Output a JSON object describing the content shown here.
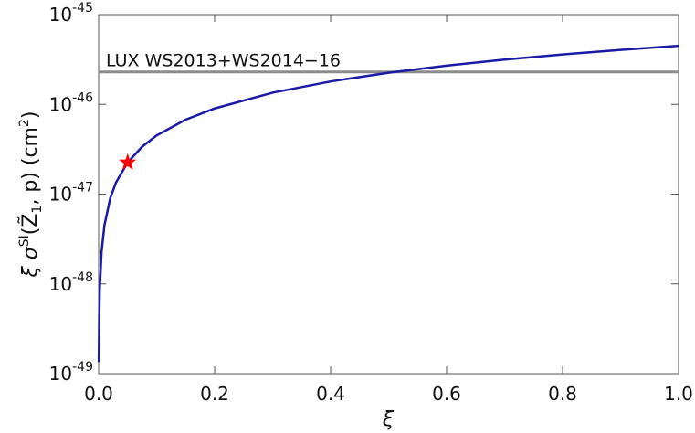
{
  "chart_data": {
    "type": "line",
    "log_y": true,
    "x_label": "ξ",
    "y_label_parts": [
      "ξ σ",
      "SI",
      "(Z̃",
      "1",
      ", p)  (cm",
      "2",
      ")"
    ],
    "xlim": [
      0,
      1.0
    ],
    "ylim": [
      1e-49,
      1e-45
    ],
    "xticks": [
      {
        "value": 0,
        "label": "0.0"
      },
      0.2,
      0.4,
      0.6,
      0.8,
      {
        "value": 1,
        "label": "1.0"
      }
    ],
    "yticks": [
      {
        "value": 1e-49,
        "label": "10",
        "exponent": "-49"
      },
      {
        "value": 1e-48,
        "label": "10",
        "exponent": "-48"
      },
      {
        "value": 1e-47,
        "label": "10",
        "exponent": "-47"
      },
      {
        "value": 1e-46,
        "label": "10",
        "exponent": "-46"
      },
      {
        "value": 1e-45,
        "label": "10",
        "exponent": "-45"
      }
    ],
    "series": [
      {
        "color": "#1a1aa6",
        "x": [
          0.0003,
          0.001,
          0.002,
          0.005,
          0.01,
          0.02,
          0.03,
          0.05,
          0.075,
          0.1,
          0.15,
          0.2,
          0.3,
          0.4,
          0.5,
          0.6,
          0.7,
          0.8,
          0.9,
          1.0
        ],
        "values": [
          1.35e-49,
          4.5e-49,
          9e-49,
          2.25e-48,
          4.5e-48,
          9e-48,
          1.35e-47,
          2.25e-47,
          3.375e-47,
          4.5e-47,
          6.75e-47,
          9e-47,
          1.35e-46,
          1.8e-46,
          2.25e-46,
          2.7e-46,
          3.15e-46,
          3.6e-46,
          4.05e-46,
          4.5e-46
        ]
      }
    ],
    "points": [
      {
        "x": 0.05,
        "y": 2.25e-47,
        "color": "#ff0000"
      }
    ],
    "reference_lines": [
      {
        "y": 2.3e-46,
        "label": "LUX WS2013+WS2014−16",
        "color": "#8c8c8c"
      }
    ]
  }
}
